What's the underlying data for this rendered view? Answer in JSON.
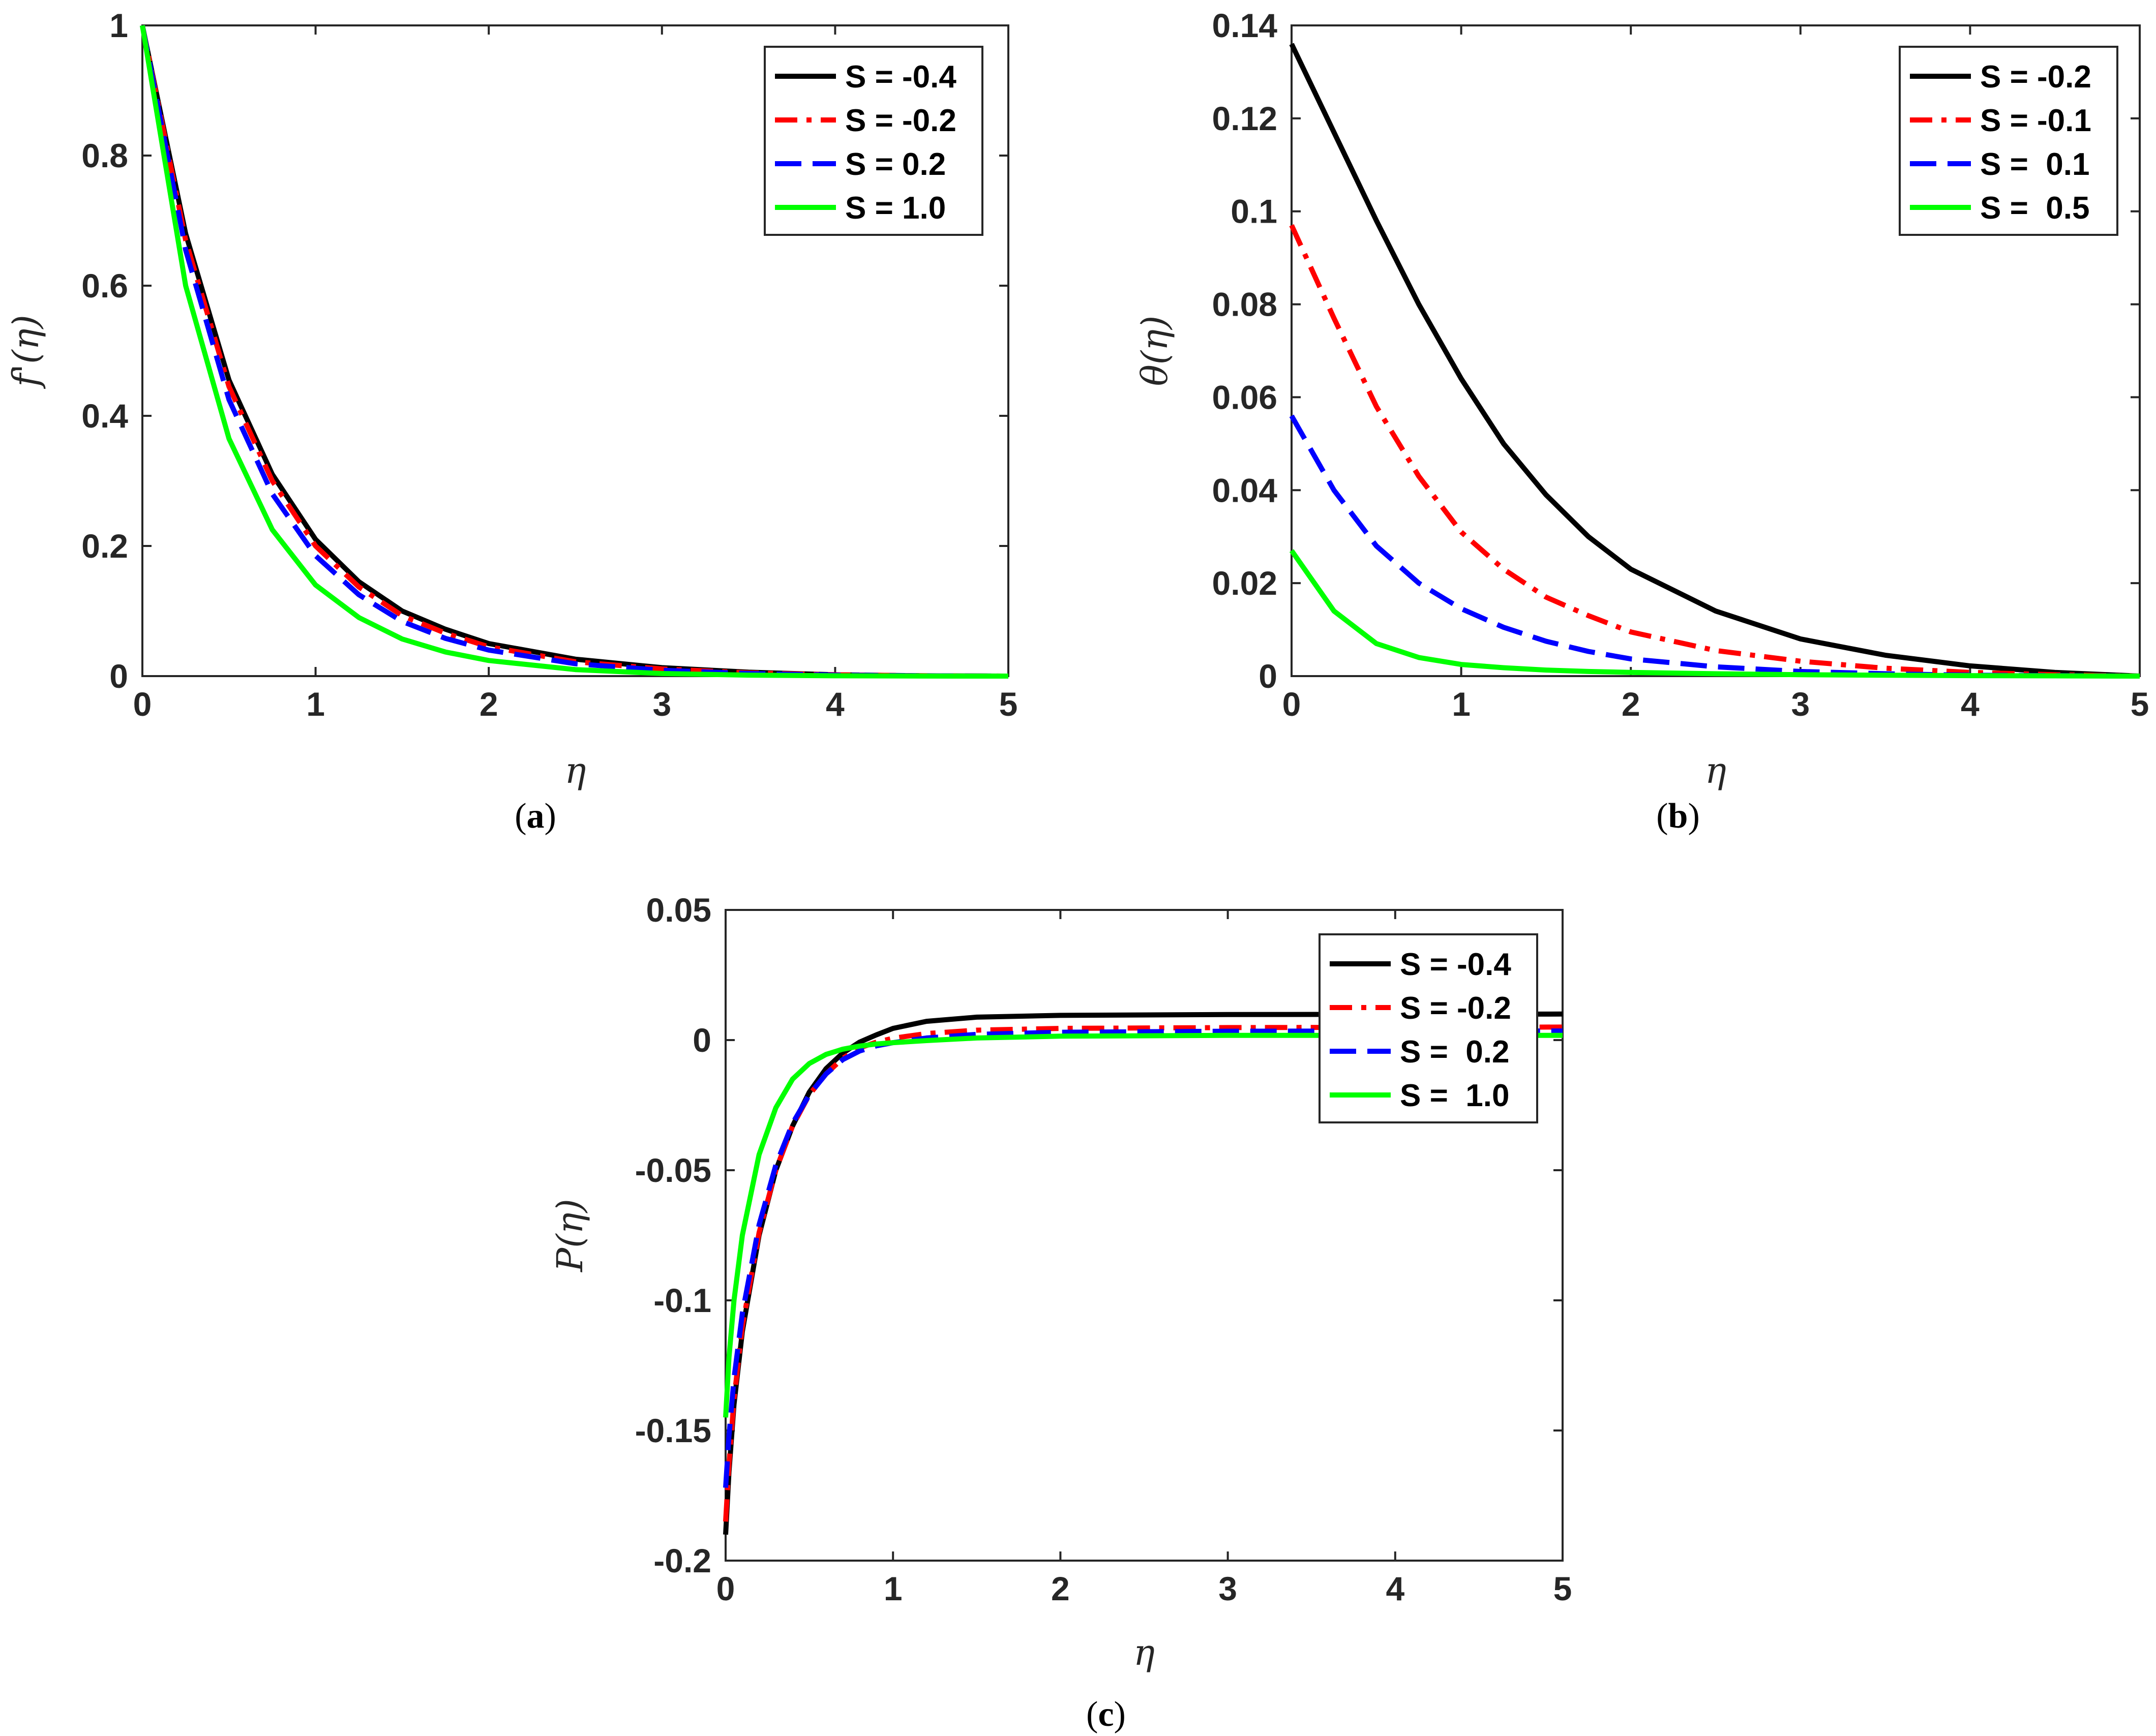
{
  "figure": {
    "captions": [
      "a",
      "b",
      "c"
    ]
  },
  "colors": {
    "black": "#000000",
    "red": "#ff0000",
    "blue": "#0000ff",
    "green": "#00ff00",
    "axis": "#262626"
  },
  "chart_data": [
    {
      "type": "line",
      "panel": "a",
      "xlabel": "η",
      "ylabel": "f'(η)",
      "xlim": [
        0,
        5
      ],
      "ylim": [
        0,
        1
      ],
      "xticks": [
        0,
        1,
        2,
        3,
        4,
        5
      ],
      "xtick_labels": [
        "0",
        "1",
        "2",
        "3",
        "4",
        "5"
      ],
      "yticks": [
        0,
        0.2,
        0.4,
        0.6,
        0.8,
        1
      ],
      "ytick_labels": [
        "0",
        "0.2",
        "0.4",
        "0.6",
        "0.8",
        "1"
      ],
      "legend_position": "top-right",
      "x": [
        0,
        0.25,
        0.5,
        0.75,
        1,
        1.25,
        1.5,
        1.75,
        2,
        2.5,
        3,
        3.5,
        4,
        4.5,
        5
      ],
      "series": [
        {
          "name": "S = -0.4",
          "color": "#000000",
          "style": "solid",
          "values": [
            1,
            0.68,
            0.455,
            0.31,
            0.21,
            0.145,
            0.1,
            0.072,
            0.05,
            0.026,
            0.013,
            0.006,
            0.002,
            0.0005,
            0
          ]
        },
        {
          "name": "S = -0.2",
          "color": "#ff0000",
          "style": "dashdot",
          "values": [
            1,
            0.67,
            0.445,
            0.3,
            0.2,
            0.137,
            0.093,
            0.066,
            0.045,
            0.022,
            0.011,
            0.005,
            0.002,
            0.0005,
            0
          ]
        },
        {
          "name": "S = 0.2",
          "color": "#0000ff",
          "style": "dashed",
          "values": [
            1,
            0.655,
            0.425,
            0.28,
            0.185,
            0.125,
            0.084,
            0.058,
            0.04,
            0.019,
            0.009,
            0.004,
            0.0015,
            0.0004,
            0
          ]
        },
        {
          "name": "S = 1.0",
          "color": "#00ff00",
          "style": "solid",
          "values": [
            1,
            0.6,
            0.365,
            0.225,
            0.14,
            0.09,
            0.057,
            0.037,
            0.024,
            0.01,
            0.004,
            0.0015,
            0.0005,
            0.0001,
            0
          ]
        }
      ]
    },
    {
      "type": "line",
      "panel": "b",
      "xlabel": "η",
      "ylabel": "θ(η)",
      "xlim": [
        0,
        5
      ],
      "ylim": [
        0,
        0.14
      ],
      "xticks": [
        0,
        1,
        2,
        3,
        4,
        5
      ],
      "xtick_labels": [
        "0",
        "1",
        "2",
        "3",
        "4",
        "5"
      ],
      "yticks": [
        0,
        0.02,
        0.04,
        0.06,
        0.08,
        0.1,
        0.12,
        0.14
      ],
      "ytick_labels": [
        "0",
        "0.02",
        "0.04",
        "0.06",
        "0.08",
        "0.1",
        "0.12",
        "0.14"
      ],
      "legend_position": "top-right",
      "x": [
        0,
        0.25,
        0.5,
        0.75,
        1,
        1.25,
        1.5,
        1.75,
        2,
        2.5,
        3,
        3.5,
        4,
        4.5,
        5
      ],
      "series": [
        {
          "name": "S = -0.2",
          "color": "#000000",
          "style": "solid",
          "values": [
            0.136,
            0.117,
            0.098,
            0.08,
            0.064,
            0.05,
            0.039,
            0.03,
            0.023,
            0.014,
            0.008,
            0.0045,
            0.0022,
            0.0008,
            0
          ]
        },
        {
          "name": "S = -0.1",
          "color": "#ff0000",
          "style": "dashdot",
          "values": [
            0.097,
            0.077,
            0.058,
            0.043,
            0.031,
            0.023,
            0.017,
            0.013,
            0.0095,
            0.0055,
            0.0032,
            0.0017,
            0.0008,
            0.0003,
            0
          ]
        },
        {
          "name": "S =  0.1",
          "color": "#0000ff",
          "style": "dashed",
          "values": [
            0.056,
            0.04,
            0.028,
            0.02,
            0.0145,
            0.0105,
            0.0075,
            0.0053,
            0.0037,
            0.002,
            0.001,
            0.0005,
            0.0002,
            0.0001,
            0
          ]
        },
        {
          "name": "S =  0.5",
          "color": "#00ff00",
          "style": "solid",
          "values": [
            0.027,
            0.014,
            0.007,
            0.004,
            0.0025,
            0.0018,
            0.0013,
            0.001,
            0.0008,
            0.0005,
            0.0003,
            0.0002,
            0.0001,
            5e-05,
            0
          ]
        }
      ]
    },
    {
      "type": "line",
      "panel": "c",
      "xlabel": "η",
      "ylabel": "P(η)",
      "xlim": [
        0,
        5
      ],
      "ylim": [
        -0.2,
        0.05
      ],
      "xticks": [
        0,
        1,
        2,
        3,
        4,
        5
      ],
      "xtick_labels": [
        "0",
        "1",
        "2",
        "3",
        "4",
        "5"
      ],
      "yticks": [
        -0.2,
        -0.15,
        -0.1,
        -0.05,
        0,
        0.05
      ],
      "ytick_labels": [
        "-0.2",
        "-0.15",
        "-0.1",
        "-0.05",
        "0",
        "0.05"
      ],
      "legend_position": "top-right",
      "x": [
        0,
        0.02,
        0.05,
        0.1,
        0.2,
        0.3,
        0.4,
        0.5,
        0.6,
        0.7,
        0.8,
        0.9,
        1,
        1.2,
        1.5,
        2,
        3,
        4,
        5
      ],
      "series": [
        {
          "name": "S = -0.4",
          "color": "#000000",
          "style": "solid",
          "values": [
            -0.19,
            -0.166,
            -0.14,
            -0.112,
            -0.075,
            -0.05,
            -0.033,
            -0.02,
            -0.011,
            -0.005,
            -0.0008,
            0.002,
            0.0045,
            0.0072,
            0.0088,
            0.0095,
            0.0098,
            0.0099,
            0.01
          ]
        },
        {
          "name": "S = -0.2",
          "color": "#ff0000",
          "style": "dashdot",
          "values": [
            -0.185,
            -0.163,
            -0.138,
            -0.11,
            -0.074,
            -0.05,
            -0.033,
            -0.021,
            -0.013,
            -0.007,
            -0.003,
            -0.0008,
            0.0007,
            0.0025,
            0.0038,
            0.0045,
            0.0048,
            0.0049,
            0.005
          ]
        },
        {
          "name": "S =  0.2",
          "color": "#0000ff",
          "style": "dashed",
          "values": [
            -0.172,
            -0.152,
            -0.13,
            -0.105,
            -0.071,
            -0.048,
            -0.032,
            -0.021,
            -0.013,
            -0.0075,
            -0.0042,
            -0.0022,
            -0.001,
            0.0008,
            0.0022,
            0.003,
            0.0034,
            0.0035,
            0.0035
          ]
        },
        {
          "name": "S =  1.0",
          "color": "#00ff00",
          "style": "solid",
          "values": [
            -0.145,
            -0.122,
            -0.1,
            -0.075,
            -0.044,
            -0.026,
            -0.015,
            -0.009,
            -0.0055,
            -0.0035,
            -0.0023,
            -0.0015,
            -0.001,
            -0.0002,
            0.0008,
            0.0015,
            0.0018,
            0.0018,
            0.0018
          ]
        }
      ]
    }
  ]
}
